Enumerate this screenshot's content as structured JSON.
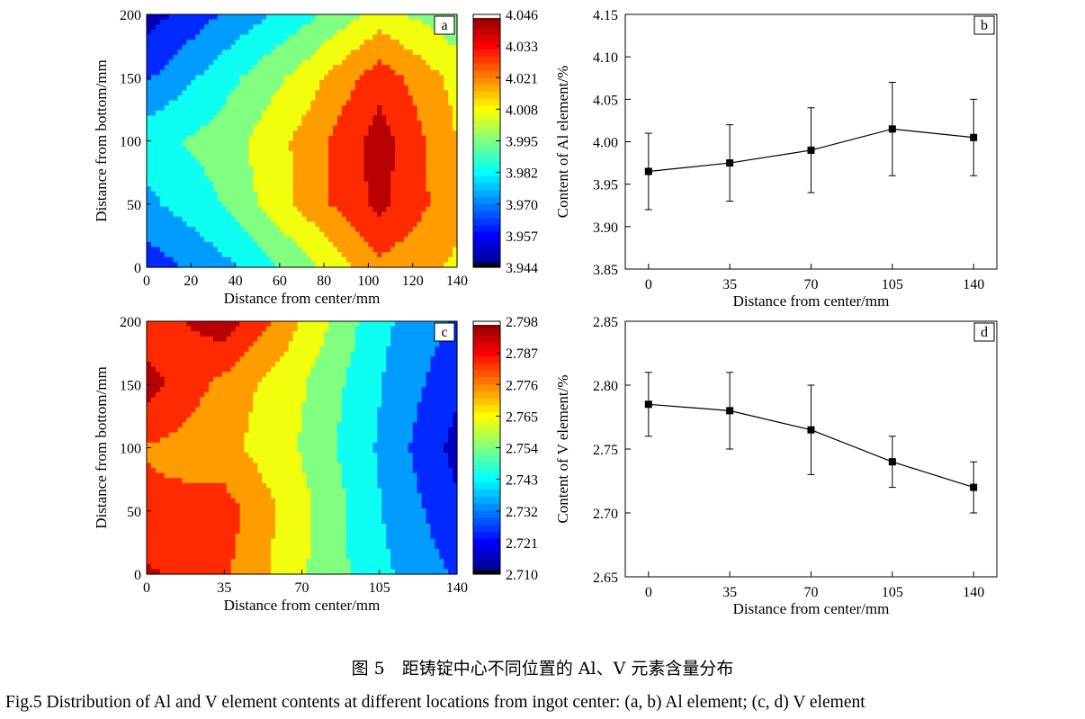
{
  "caption": {
    "cn": "图 5　距铸锭中心不同位置的 Al、V 元素含量分布",
    "en": "Fig.5    Distribution of Al and V element contents at different locations from ingot center: (a, b) Al element; (c, d) V element"
  },
  "chart_data": [
    {
      "id": "a",
      "panel_label": "a",
      "type": "heatmap",
      "xlabel": "Distance from center/mm",
      "ylabel": "Distance from bottom/mm",
      "xlim": [
        0,
        140
      ],
      "ylim": [
        0,
        200
      ],
      "x_ticks": [
        0,
        20,
        40,
        60,
        80,
        100,
        120,
        140
      ],
      "y_ticks": [
        0,
        50,
        100,
        150,
        200
      ],
      "grid_x": [
        0,
        35,
        70,
        105,
        140
      ],
      "grid_y": [
        0,
        50,
        100,
        150,
        200
      ],
      "values": [
        [
          3.96,
          3.975,
          3.995,
          4.02,
          4.01
        ],
        [
          3.975,
          3.99,
          4.015,
          4.038,
          4.015
        ],
        [
          3.985,
          3.995,
          4.015,
          4.04,
          4.012
        ],
        [
          3.965,
          3.985,
          4.005,
          4.03,
          4.008
        ],
        [
          3.95,
          3.968,
          3.985,
          4.005,
          3.992
        ]
      ],
      "colorbar_ticks": [
        4.046,
        4.033,
        4.021,
        4.008,
        3.995,
        3.982,
        3.97,
        3.957,
        3.944
      ],
      "colorbar_range": [
        3.944,
        4.046
      ]
    },
    {
      "id": "b",
      "panel_label": "b",
      "type": "line",
      "xlabel": "Distance from center/mm",
      "ylabel": "Content of Al element/%",
      "x": [
        0,
        35,
        70,
        105,
        140
      ],
      "y": [
        3.965,
        3.975,
        3.99,
        4.015,
        4.005
      ],
      "error": [
        0.045,
        0.045,
        0.05,
        0.055,
        0.045
      ],
      "xlim": [
        -10,
        150
      ],
      "ylim": [
        3.85,
        4.15
      ],
      "x_ticks": [
        0,
        35,
        70,
        105,
        140
      ],
      "y_ticks": [
        "3.85",
        "3.90",
        "3.95",
        "4.00",
        "4.05",
        "4.10",
        "4.15"
      ]
    },
    {
      "id": "c",
      "panel_label": "c",
      "type": "heatmap",
      "xlabel": "Distance from center/mm",
      "ylabel": "Distance from bottom/mm",
      "xlim": [
        0,
        140
      ],
      "ylim": [
        0,
        200
      ],
      "x_ticks": [
        0,
        35,
        70,
        105,
        140
      ],
      "y_ticks": [
        0,
        50,
        100,
        150,
        200
      ],
      "grid_x": [
        0,
        35,
        70,
        105,
        140
      ],
      "grid_y": [
        0,
        50,
        100,
        150,
        200
      ],
      "values": [
        [
          2.79,
          2.78,
          2.76,
          2.742,
          2.728
        ],
        [
          2.78,
          2.783,
          2.762,
          2.74,
          2.722
        ],
        [
          2.778,
          2.772,
          2.758,
          2.738,
          2.716
        ],
        [
          2.792,
          2.775,
          2.76,
          2.74,
          2.722
        ],
        [
          2.782,
          2.794,
          2.768,
          2.742,
          2.728
        ]
      ],
      "colorbar_ticks": [
        2.798,
        2.787,
        2.776,
        2.765,
        2.754,
        2.743,
        2.732,
        2.721,
        2.71
      ],
      "colorbar_range": [
        2.71,
        2.798
      ]
    },
    {
      "id": "d",
      "panel_label": "d",
      "type": "line",
      "xlabel": "Distance from center/mm",
      "ylabel": "Content of V element/%",
      "x": [
        0,
        35,
        70,
        105,
        140
      ],
      "y": [
        2.785,
        2.78,
        2.765,
        2.74,
        2.72
      ],
      "error": [
        0.025,
        0.03,
        0.035,
        0.02,
        0.02
      ],
      "xlim": [
        -10,
        150
      ],
      "ylim": [
        2.65,
        2.85
      ],
      "x_ticks": [
        0,
        35,
        70,
        105,
        140
      ],
      "y_ticks": [
        "2.65",
        "2.70",
        "2.75",
        "2.80",
        "2.85"
      ]
    }
  ]
}
